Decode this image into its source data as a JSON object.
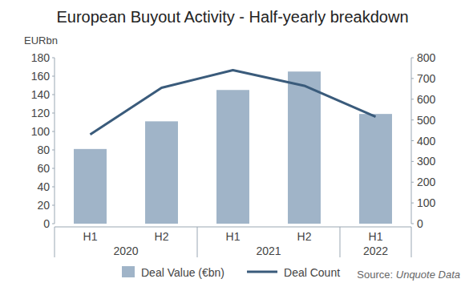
{
  "chart_data": {
    "type": "bar",
    "title": "European Buyout Activity - Half-yearly breakdown",
    "y_label": "EURbn",
    "categories": [
      "H1",
      "H2",
      "H1",
      "H2",
      "H1"
    ],
    "year_groups": [
      {
        "label": "2020",
        "count": 2
      },
      {
        "label": "2021",
        "count": 2
      },
      {
        "label": "2022",
        "count": 1
      }
    ],
    "series": [
      {
        "name": "Deal Value (€bn)",
        "type": "bar",
        "color": "#a0b4c8",
        "values": [
          81,
          111,
          145,
          165,
          119
        ]
      },
      {
        "name": "Deal Count",
        "type": "line",
        "color": "#3a5b7b",
        "axis": "y2",
        "values": [
          430,
          655,
          740,
          665,
          515
        ]
      }
    ],
    "ylim": [
      0,
      180
    ],
    "yticks": [
      0,
      20,
      40,
      60,
      80,
      100,
      120,
      140,
      160,
      180
    ],
    "y2lim": [
      0,
      800
    ],
    "y2ticks": [
      0,
      100,
      200,
      300,
      400,
      500,
      600,
      700,
      800
    ],
    "grid": false,
    "legend": "bottom",
    "data_labels": false,
    "source_prefix": "Source:",
    "source": "Unquote Data"
  }
}
